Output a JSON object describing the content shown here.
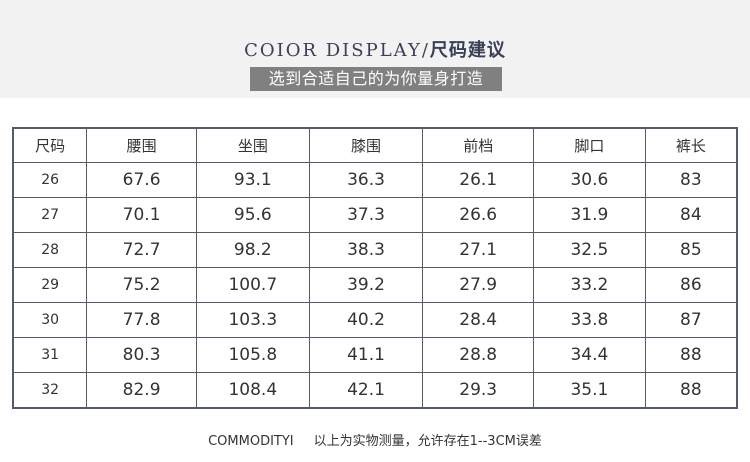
{
  "header": {
    "title_en": "COIOR DISPLAY/",
    "title_cn": "尺码建议",
    "subtitle": "选到合适自己的为你量身打造",
    "band_color": "#f2f2f2",
    "subtitle_bg": "#808080"
  },
  "table": {
    "columns": [
      "尺码",
      "腰围",
      "坐围",
      "膝围",
      "前档",
      "脚口",
      "裤长"
    ],
    "rows": [
      [
        "26",
        "67.6",
        "93.1",
        "36.3",
        "26.1",
        "30.6",
        "83"
      ],
      [
        "27",
        "70.1",
        "95.6",
        "37.3",
        "26.6",
        "31.9",
        "84"
      ],
      [
        "28",
        "72.7",
        "98.2",
        "38.3",
        "27.1",
        "32.5",
        "85"
      ],
      [
        "29",
        "75.2",
        "100.7",
        "39.2",
        "27.9",
        "33.2",
        "86"
      ],
      [
        "30",
        "77.8",
        "103.3",
        "40.2",
        "28.4",
        "33.8",
        "87"
      ],
      [
        "31",
        "80.3",
        "105.8",
        "41.1",
        "28.8",
        "34.4",
        "88"
      ],
      [
        "32",
        "82.9",
        "108.4",
        "42.1",
        "29.3",
        "35.1",
        "88"
      ]
    ]
  },
  "footer": {
    "label": "COMMODITYI",
    "note": "以上为实物测量，允许存在1--3CM误差"
  }
}
